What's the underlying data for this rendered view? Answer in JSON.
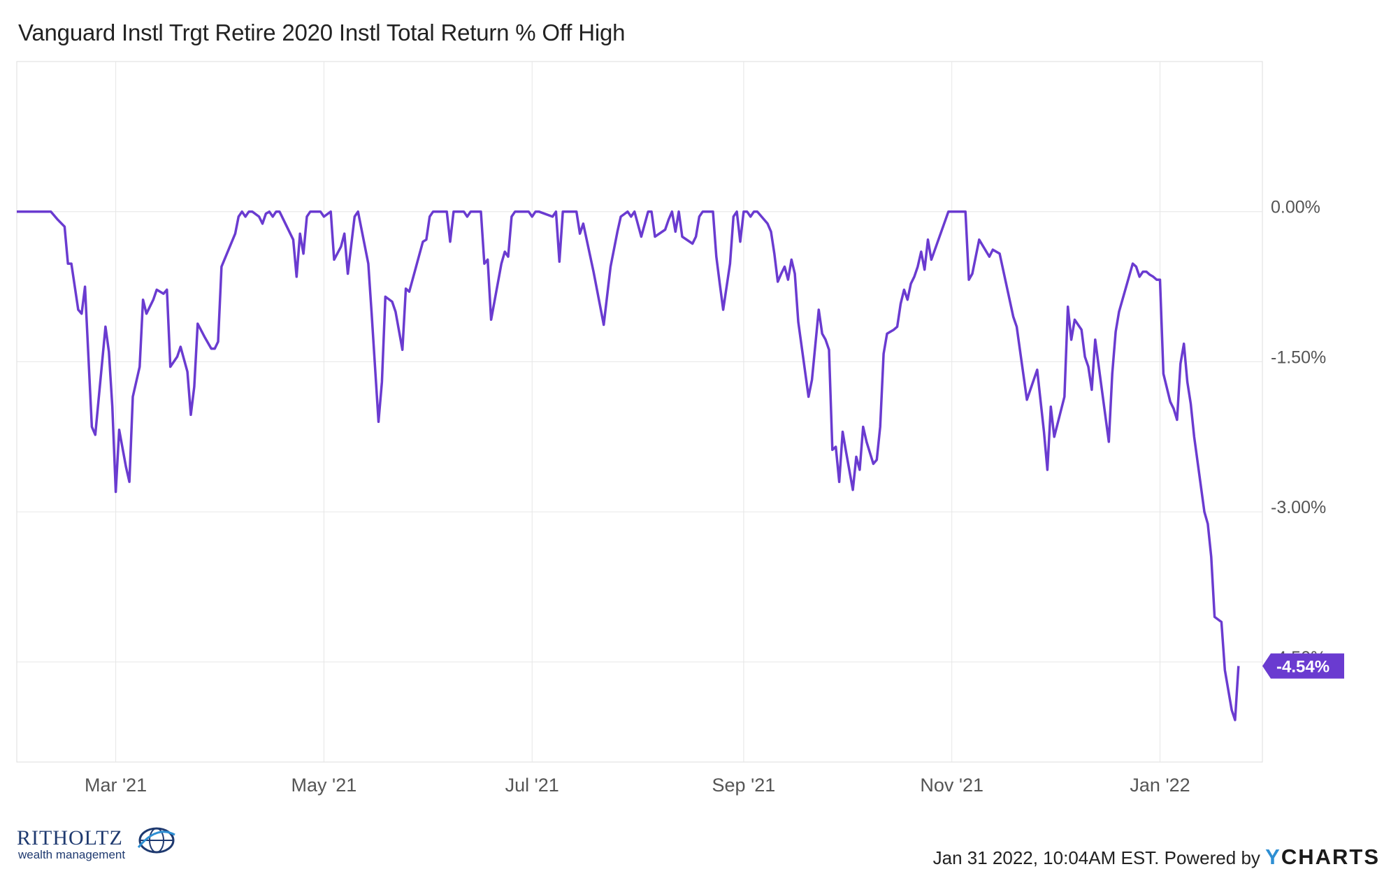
{
  "header": {
    "title": "Vanguard Instl Trgt Retire 2020 Instl Total Return % Off High"
  },
  "footer": {
    "timestamp": "Jan 31 2022, 10:04AM EST. Powered by",
    "brand_y": "Y",
    "brand_rest": "CHARTS",
    "logo_name": "RITHOLTZ",
    "logo_sub": "wealth management"
  },
  "colors": {
    "line": "#6a3bd0",
    "grid": "#e6e6e6",
    "axis_text": "#555555",
    "last_label_bg": "#6a3bd0"
  },
  "chart_data": {
    "type": "line",
    "title": "Vanguard Instl Trgt Retire 2020 Instl Total Return % Off High",
    "xlabel": "",
    "ylabel": "",
    "x_range": [
      "2021-01-31",
      "2022-01-31"
    ],
    "ylim": [
      -5.5,
      1.5
    ],
    "y_ticks": [
      0.0,
      -1.5,
      -3.0,
      -4.5
    ],
    "y_tick_labels": [
      "0.00%",
      "-1.50%",
      "-3.00%",
      "-4.50%"
    ],
    "x_ticks": [
      "2021-03-01",
      "2021-05-01",
      "2021-07-01",
      "2021-09-01",
      "2021-11-01",
      "2022-01-01"
    ],
    "x_tick_labels": [
      "Mar '21",
      "May '21",
      "Jul '21",
      "Sep '21",
      "Nov '21",
      "Jan '22"
    ],
    "last_value_label": "-4.54%",
    "grid": true,
    "legend": "none",
    "series": [
      {
        "values": [
          [
            "2021-01-31",
            0.0
          ],
          [
            "2021-02-08",
            0.0
          ],
          [
            "2021-02-10",
            0.0
          ],
          [
            "2021-02-12",
            -0.08
          ],
          [
            "2021-02-14",
            -0.15
          ],
          [
            "2021-02-15",
            -0.52
          ],
          [
            "2021-02-16",
            -0.52
          ],
          [
            "2021-02-18",
            -0.98
          ],
          [
            "2021-02-19",
            -1.02
          ],
          [
            "2021-02-20",
            -0.75
          ],
          [
            "2021-02-22",
            -2.15
          ],
          [
            "2021-02-23",
            -2.23
          ],
          [
            "2021-02-26",
            -1.15
          ],
          [
            "2021-02-27",
            -1.4
          ],
          [
            "2021-02-28",
            -1.95
          ],
          [
            "2021-03-01",
            -2.8
          ],
          [
            "2021-03-02",
            -2.18
          ],
          [
            "2021-03-04",
            -2.55
          ],
          [
            "2021-03-05",
            -2.7
          ],
          [
            "2021-03-06",
            -1.85
          ],
          [
            "2021-03-08",
            -1.55
          ],
          [
            "2021-03-09",
            -0.88
          ],
          [
            "2021-03-10",
            -1.02
          ],
          [
            "2021-03-12",
            -0.88
          ],
          [
            "2021-03-13",
            -0.78
          ],
          [
            "2021-03-15",
            -0.82
          ],
          [
            "2021-03-16",
            -0.78
          ],
          [
            "2021-03-17",
            -1.55
          ],
          [
            "2021-03-19",
            -1.45
          ],
          [
            "2021-03-20",
            -1.35
          ],
          [
            "2021-03-22",
            -1.6
          ],
          [
            "2021-03-23",
            -2.03
          ],
          [
            "2021-03-24",
            -1.75
          ],
          [
            "2021-03-25",
            -1.12
          ],
          [
            "2021-03-27",
            -1.25
          ],
          [
            "2021-03-29",
            -1.37
          ],
          [
            "2021-03-30",
            -1.37
          ],
          [
            "2021-03-31",
            -1.3
          ],
          [
            "2021-04-01",
            -0.55
          ],
          [
            "2021-04-05",
            -0.22
          ],
          [
            "2021-04-06",
            -0.05
          ],
          [
            "2021-04-07",
            0.0
          ],
          [
            "2021-04-08",
            -0.05
          ],
          [
            "2021-04-09",
            0.0
          ],
          [
            "2021-04-10",
            0.0
          ],
          [
            "2021-04-12",
            -0.05
          ],
          [
            "2021-04-13",
            -0.12
          ],
          [
            "2021-04-14",
            -0.02
          ],
          [
            "2021-04-15",
            0.0
          ],
          [
            "2021-04-16",
            -0.05
          ],
          [
            "2021-04-17",
            0.0
          ],
          [
            "2021-04-18",
            0.0
          ],
          [
            "2021-04-22",
            -0.28
          ],
          [
            "2021-04-23",
            -0.65
          ],
          [
            "2021-04-24",
            -0.22
          ],
          [
            "2021-04-25",
            -0.42
          ],
          [
            "2021-04-26",
            -0.05
          ],
          [
            "2021-04-27",
            0.0
          ],
          [
            "2021-04-29",
            0.0
          ],
          [
            "2021-04-30",
            0.0
          ],
          [
            "2021-05-01",
            -0.05
          ],
          [
            "2021-05-03",
            0.0
          ],
          [
            "2021-05-04",
            -0.48
          ],
          [
            "2021-05-06",
            -0.35
          ],
          [
            "2021-05-07",
            -0.22
          ],
          [
            "2021-05-08",
            -0.62
          ],
          [
            "2021-05-10",
            -0.05
          ],
          [
            "2021-05-11",
            0.0
          ],
          [
            "2021-05-14",
            -0.52
          ],
          [
            "2021-05-15",
            -1.02
          ],
          [
            "2021-05-17",
            -2.1
          ],
          [
            "2021-05-18",
            -1.7
          ],
          [
            "2021-05-19",
            -0.85
          ],
          [
            "2021-05-21",
            -0.9
          ],
          [
            "2021-05-22",
            -1.0
          ],
          [
            "2021-05-24",
            -1.38
          ],
          [
            "2021-05-25",
            -0.77
          ],
          [
            "2021-05-26",
            -0.8
          ],
          [
            "2021-05-30",
            -0.3
          ],
          [
            "2021-05-31",
            -0.28
          ],
          [
            "2021-06-01",
            -0.05
          ],
          [
            "2021-06-02",
            0.0
          ],
          [
            "2021-06-06",
            0.0
          ],
          [
            "2021-06-07",
            -0.3
          ],
          [
            "2021-06-08",
            0.0
          ],
          [
            "2021-06-11",
            0.0
          ],
          [
            "2021-06-12",
            -0.05
          ],
          [
            "2021-06-13",
            0.0
          ],
          [
            "2021-06-16",
            0.0
          ],
          [
            "2021-06-17",
            -0.52
          ],
          [
            "2021-06-18",
            -0.48
          ],
          [
            "2021-06-19",
            -1.08
          ],
          [
            "2021-06-22",
            -0.52
          ],
          [
            "2021-06-23",
            -0.4
          ],
          [
            "2021-06-24",
            -0.45
          ],
          [
            "2021-06-25",
            -0.05
          ],
          [
            "2021-06-26",
            0.0
          ],
          [
            "2021-06-29",
            0.0
          ],
          [
            "2021-06-30",
            0.0
          ],
          [
            "2021-07-01",
            -0.05
          ],
          [
            "2021-07-02",
            0.0
          ],
          [
            "2021-07-03",
            0.0
          ],
          [
            "2021-07-07",
            -0.05
          ],
          [
            "2021-07-08",
            0.0
          ],
          [
            "2021-07-09",
            -0.5
          ],
          [
            "2021-07-10",
            0.0
          ],
          [
            "2021-07-14",
            0.0
          ],
          [
            "2021-07-15",
            -0.22
          ],
          [
            "2021-07-16",
            -0.12
          ],
          [
            "2021-07-17",
            -0.28
          ],
          [
            "2021-07-19",
            -0.6
          ],
          [
            "2021-07-22",
            -1.13
          ],
          [
            "2021-07-24",
            -0.55
          ],
          [
            "2021-07-26",
            -0.2
          ],
          [
            "2021-07-27",
            -0.05
          ],
          [
            "2021-07-29",
            0.0
          ],
          [
            "2021-07-30",
            -0.05
          ],
          [
            "2021-07-31",
            0.0
          ],
          [
            "2021-08-02",
            -0.25
          ],
          [
            "2021-08-04",
            0.0
          ],
          [
            "2021-08-05",
            0.0
          ],
          [
            "2021-08-06",
            -0.25
          ],
          [
            "2021-08-09",
            -0.18
          ],
          [
            "2021-08-10",
            -0.08
          ],
          [
            "2021-08-11",
            0.0
          ],
          [
            "2021-08-12",
            -0.2
          ],
          [
            "2021-08-13",
            0.0
          ],
          [
            "2021-08-14",
            -0.25
          ],
          [
            "2021-08-17",
            -0.32
          ],
          [
            "2021-08-18",
            -0.25
          ],
          [
            "2021-08-19",
            -0.05
          ],
          [
            "2021-08-20",
            0.0
          ],
          [
            "2021-08-23",
            0.0
          ],
          [
            "2021-08-24",
            -0.45
          ],
          [
            "2021-08-25",
            -0.72
          ],
          [
            "2021-08-26",
            -0.98
          ],
          [
            "2021-08-28",
            -0.52
          ],
          [
            "2021-08-29",
            -0.05
          ],
          [
            "2021-08-30",
            0.0
          ],
          [
            "2021-08-31",
            -0.3
          ],
          [
            "2021-09-01",
            0.0
          ],
          [
            "2021-09-02",
            0.0
          ],
          [
            "2021-09-03",
            -0.05
          ],
          [
            "2021-09-04",
            0.0
          ],
          [
            "2021-09-05",
            0.0
          ],
          [
            "2021-09-08",
            -0.12
          ],
          [
            "2021-09-09",
            -0.2
          ],
          [
            "2021-09-10",
            -0.42
          ],
          [
            "2021-09-11",
            -0.7
          ],
          [
            "2021-09-12",
            -0.62
          ],
          [
            "2021-09-13",
            -0.55
          ],
          [
            "2021-09-14",
            -0.68
          ],
          [
            "2021-09-15",
            -0.48
          ],
          [
            "2021-09-16",
            -0.62
          ],
          [
            "2021-09-17",
            -1.1
          ],
          [
            "2021-09-20",
            -1.85
          ],
          [
            "2021-09-21",
            -1.68
          ],
          [
            "2021-09-23",
            -0.98
          ],
          [
            "2021-09-24",
            -1.22
          ],
          [
            "2021-09-25",
            -1.28
          ],
          [
            "2021-09-26",
            -1.38
          ],
          [
            "2021-09-27",
            -2.38
          ],
          [
            "2021-09-28",
            -2.35
          ],
          [
            "2021-09-29",
            -2.7
          ],
          [
            "2021-09-30",
            -2.2
          ],
          [
            "2021-10-01",
            -2.4
          ],
          [
            "2021-10-03",
            -2.78
          ],
          [
            "2021-10-04",
            -2.45
          ],
          [
            "2021-10-05",
            -2.58
          ],
          [
            "2021-10-06",
            -2.15
          ],
          [
            "2021-10-07",
            -2.3
          ],
          [
            "2021-10-09",
            -2.52
          ],
          [
            "2021-10-10",
            -2.48
          ],
          [
            "2021-10-11",
            -2.15
          ],
          [
            "2021-10-12",
            -1.42
          ],
          [
            "2021-10-13",
            -1.22
          ],
          [
            "2021-10-15",
            -1.18
          ],
          [
            "2021-10-16",
            -1.15
          ],
          [
            "2021-10-17",
            -0.92
          ],
          [
            "2021-10-18",
            -0.78
          ],
          [
            "2021-10-19",
            -0.88
          ],
          [
            "2021-10-20",
            -0.72
          ],
          [
            "2021-10-21",
            -0.65
          ],
          [
            "2021-10-22",
            -0.55
          ],
          [
            "2021-10-23",
            -0.4
          ],
          [
            "2021-10-24",
            -0.58
          ],
          [
            "2021-10-25",
            -0.28
          ],
          [
            "2021-10-26",
            -0.48
          ],
          [
            "2021-10-31",
            0.0
          ],
          [
            "2021-11-01",
            0.0
          ],
          [
            "2021-11-05",
            0.0
          ],
          [
            "2021-11-06",
            -0.68
          ],
          [
            "2021-11-07",
            -0.62
          ],
          [
            "2021-11-09",
            -0.28
          ],
          [
            "2021-11-12",
            -0.45
          ],
          [
            "2021-11-13",
            -0.38
          ],
          [
            "2021-11-15",
            -0.42
          ],
          [
            "2021-11-19",
            -1.05
          ],
          [
            "2021-11-20",
            -1.15
          ],
          [
            "2021-11-23",
            -1.88
          ],
          [
            "2021-11-26",
            -1.58
          ],
          [
            "2021-11-28",
            -2.2
          ],
          [
            "2021-11-29",
            -2.58
          ],
          [
            "2021-11-30",
            -1.95
          ],
          [
            "2021-12-01",
            -2.25
          ],
          [
            "2021-12-04",
            -1.85
          ],
          [
            "2021-12-05",
            -0.95
          ],
          [
            "2021-12-06",
            -1.28
          ],
          [
            "2021-12-07",
            -1.08
          ],
          [
            "2021-12-09",
            -1.18
          ],
          [
            "2021-12-10",
            -1.45
          ],
          [
            "2021-12-11",
            -1.55
          ],
          [
            "2021-12-12",
            -1.78
          ],
          [
            "2021-12-13",
            -1.28
          ],
          [
            "2021-12-17",
            -2.3
          ],
          [
            "2021-12-18",
            -1.62
          ],
          [
            "2021-12-19",
            -1.2
          ],
          [
            "2021-12-20",
            -1.0
          ],
          [
            "2021-12-24",
            -0.52
          ],
          [
            "2021-12-25",
            -0.55
          ],
          [
            "2021-12-26",
            -0.65
          ],
          [
            "2021-12-27",
            -0.6
          ],
          [
            "2021-12-28",
            -0.6
          ],
          [
            "2021-12-29",
            -0.63
          ],
          [
            "2021-12-30",
            -0.65
          ],
          [
            "2021-12-31",
            -0.68
          ],
          [
            "2022-01-01",
            -0.68
          ],
          [
            "2022-01-02",
            -1.62
          ],
          [
            "2022-01-04",
            -1.9
          ],
          [
            "2022-01-05",
            -1.97
          ],
          [
            "2022-01-06",
            -2.08
          ],
          [
            "2022-01-07",
            -1.52
          ],
          [
            "2022-01-08",
            -1.32
          ],
          [
            "2022-01-09",
            -1.7
          ],
          [
            "2022-01-10",
            -1.92
          ],
          [
            "2022-01-11",
            -2.25
          ],
          [
            "2022-01-14",
            -3.0
          ],
          [
            "2022-01-15",
            -3.12
          ],
          [
            "2022-01-16",
            -3.45
          ],
          [
            "2022-01-17",
            -4.05
          ],
          [
            "2022-01-19",
            -4.1
          ],
          [
            "2022-01-20",
            -4.58
          ],
          [
            "2022-01-22",
            -4.98
          ],
          [
            "2022-01-23",
            -5.08
          ],
          [
            "2022-01-24",
            -4.54
          ]
        ]
      }
    ]
  }
}
